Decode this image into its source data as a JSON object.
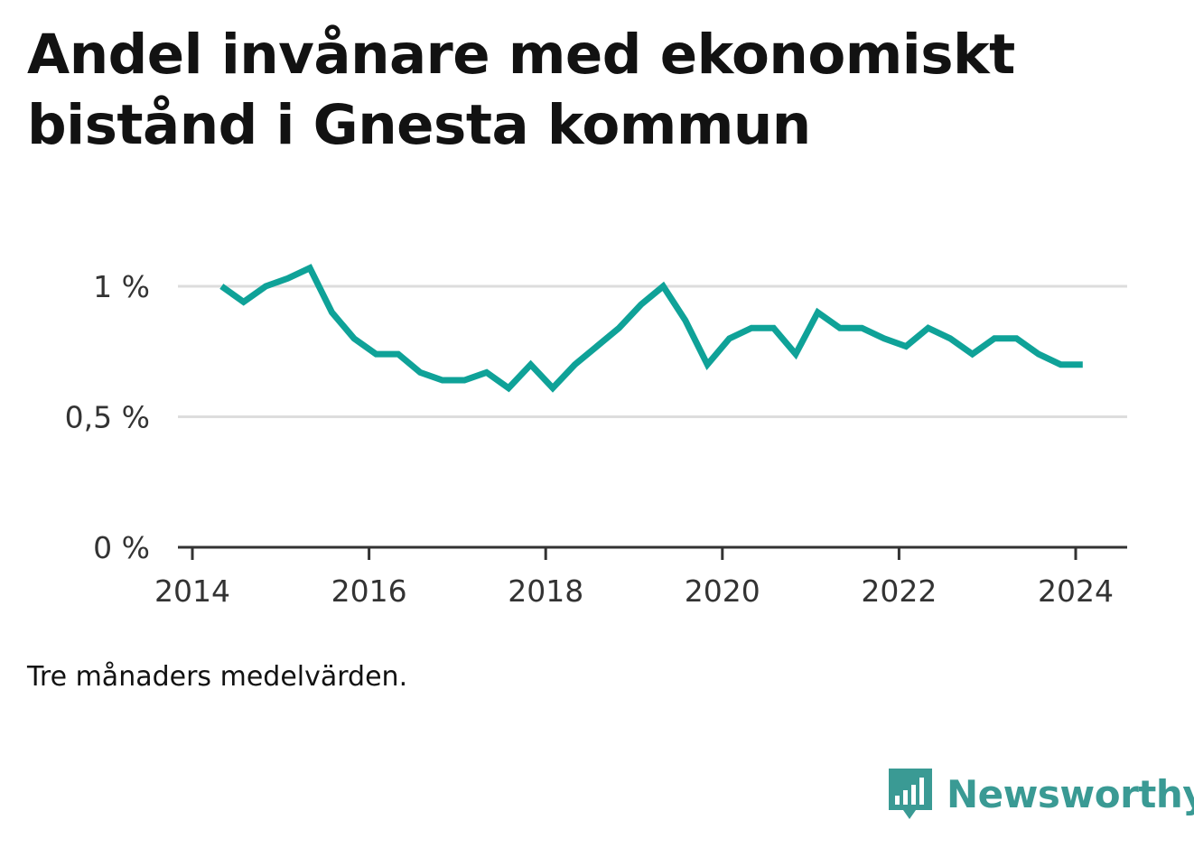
{
  "title": "Andel invånare med ekonomiskt bistånd i Gnesta kommun",
  "note": "Tre månaders medelvärden.",
  "brand": {
    "name": "Newsworthy",
    "color": "#3a9a94",
    "icon": "bar-chart-speech-bubble-icon"
  },
  "chart_data": {
    "type": "line",
    "title": "Andel invånare med ekonomiskt bistånd i Gnesta kommun",
    "xlabel": "",
    "ylabel": "",
    "xlim": [
      2014,
      2024.6
    ],
    "ylim": [
      0,
      1.1
    ],
    "grid": true,
    "line_color": "#0fa298",
    "x_ticks": [
      2014,
      2016,
      2018,
      2020,
      2022,
      2024
    ],
    "x_tick_labels": [
      "2014",
      "2016",
      "2018",
      "2020",
      "2022",
      "2024"
    ],
    "y_ticks": [
      0,
      0.5,
      1
    ],
    "y_tick_labels": [
      "0 %",
      "0,5 %",
      "1 %"
    ],
    "series": [
      {
        "x": [
          2014.33,
          2014.58,
          2014.83,
          2015.08,
          2015.33,
          2015.58,
          2015.83,
          2016.08,
          2016.33,
          2016.58,
          2016.83,
          2017.08,
          2017.33,
          2017.58,
          2017.83,
          2018.08,
          2018.33,
          2018.58,
          2018.83,
          2019.08,
          2019.33,
          2019.58,
          2019.83,
          2020.08,
          2020.33,
          2020.58,
          2020.83,
          2021.08,
          2021.33,
          2021.58,
          2021.83,
          2022.08,
          2022.33,
          2022.58,
          2022.83,
          2023.08,
          2023.33,
          2023.58,
          2023.83,
          2024.08
        ],
        "values": [
          1.0,
          0.94,
          1.0,
          1.03,
          1.07,
          0.9,
          0.8,
          0.74,
          0.74,
          0.67,
          0.64,
          0.64,
          0.67,
          0.61,
          0.7,
          0.61,
          0.7,
          0.77,
          0.84,
          0.93,
          1.0,
          0.87,
          0.7,
          0.8,
          0.84,
          0.84,
          0.74,
          0.9,
          0.84,
          0.84,
          0.8,
          0.77,
          0.84,
          0.8,
          0.74,
          0.8,
          0.8,
          0.74,
          0.7,
          0.7
        ]
      }
    ]
  }
}
